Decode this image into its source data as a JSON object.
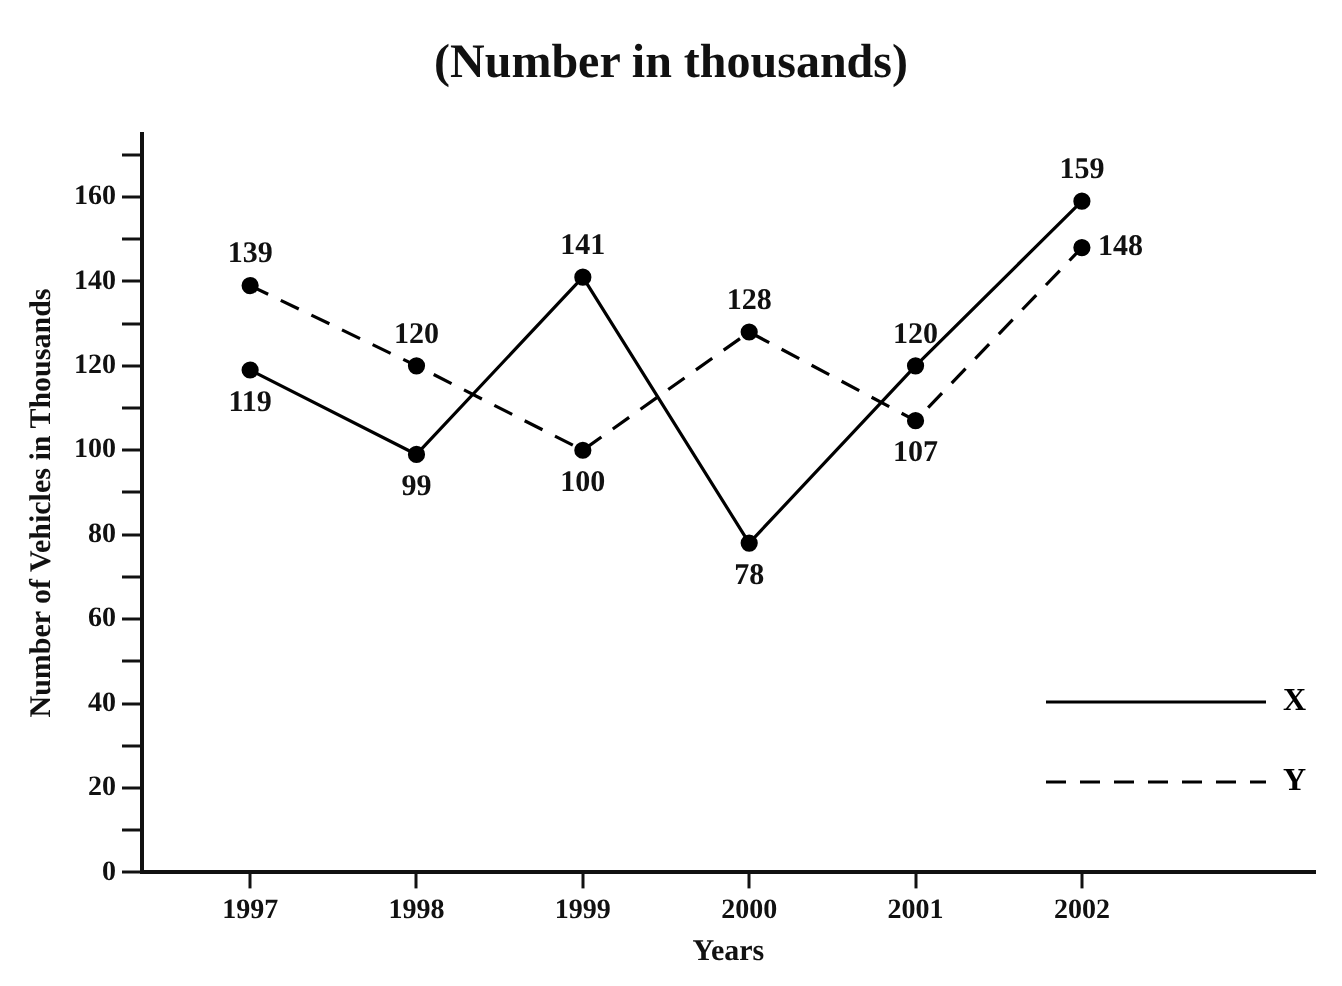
{
  "chart_data": {
    "type": "line",
    "title": "(Number in thousands)",
    "xlabel": "Years",
    "ylabel": "Number of Vehicles in Thousands",
    "x": [
      1997,
      1998,
      1999,
      2000,
      2001,
      2002
    ],
    "xlim": [
      1996.35,
      2003.4
    ],
    "xticks": [
      1997,
      1998,
      1999,
      2000,
      2001,
      2002
    ],
    "ylim": [
      0,
      175
    ],
    "yticks": [
      0,
      {
        "value": 10,
        "label": null
      },
      20,
      {
        "value": 30,
        "label": null
      },
      40,
      {
        "value": 50,
        "label": null
      },
      60,
      {
        "value": 70,
        "label": null
      },
      80,
      {
        "value": 90,
        "label": null
      },
      100,
      {
        "value": 110,
        "label": null
      },
      120,
      {
        "value": 130,
        "label": null
      },
      140,
      {
        "value": 150,
        "label": null
      },
      160,
      {
        "value": 170,
        "label": null
      }
    ],
    "series": [
      {
        "name": "X",
        "color": "#000000",
        "line_style": "solid",
        "values": [
          119,
          99,
          141,
          78,
          120,
          159
        ]
      },
      {
        "name": "Y",
        "color": "#000000",
        "line_style": "dashed",
        "values": [
          139,
          120,
          100,
          128,
          107,
          148
        ]
      }
    ],
    "marker": "circle",
    "grid": false,
    "legend": "bottom right",
    "data_labels": true
  }
}
